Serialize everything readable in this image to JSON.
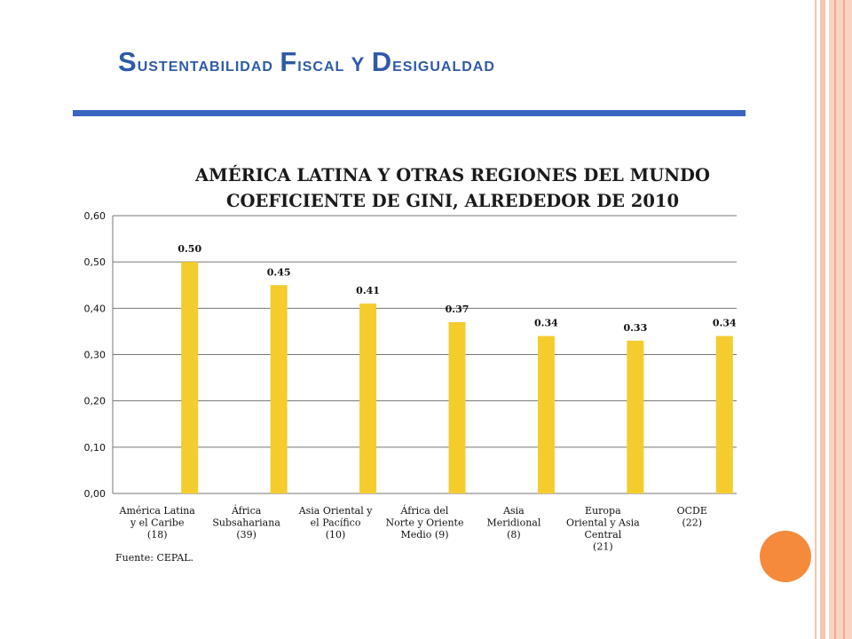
{
  "slide": {
    "title": "Sustentabilidad Fiscal y Desigualdad",
    "source_note": "Fuente: CEPAL."
  },
  "colors": {
    "title": "#2f5aa8",
    "rule": "#3a66c2",
    "bar": "#f4cc2e",
    "accent_circle": "#f58a3d",
    "side_stripe": "#f7c4b0"
  },
  "chart_data": {
    "type": "bar",
    "title_lines": [
      "AMÉRICA LATINA Y OTRAS REGIONES DEL MUNDO",
      "COEFICIENTE DE GINI, ALREDEDOR DE 2010"
    ],
    "categories": [
      [
        "América Latina",
        "y el Caribe",
        "(18)"
      ],
      [
        "África",
        "Subsahariana",
        "(39)"
      ],
      [
        "Asia Oriental y",
        "el Pacífico",
        "(10)"
      ],
      [
        "África del",
        "Norte y Oriente",
        "Medio (9)"
      ],
      [
        "Asia",
        "Meridional",
        "(8)"
      ],
      [
        "Europa",
        "Oriental y Asia",
        "Central",
        "(21)"
      ],
      [
        "OCDE",
        "(22)"
      ]
    ],
    "values": [
      0.5,
      0.45,
      0.41,
      0.37,
      0.34,
      0.33,
      0.34
    ],
    "data_labels": [
      "0.50",
      "0.45",
      "0.41",
      "0.37",
      "0.34",
      "0.33",
      "0.34"
    ],
    "y_ticks": [
      "0,00",
      "0,10",
      "0,20",
      "0,30",
      "0,40",
      "0,50",
      "0,60"
    ],
    "ylim": [
      0,
      0.6
    ],
    "grid": true,
    "legend": "none"
  }
}
